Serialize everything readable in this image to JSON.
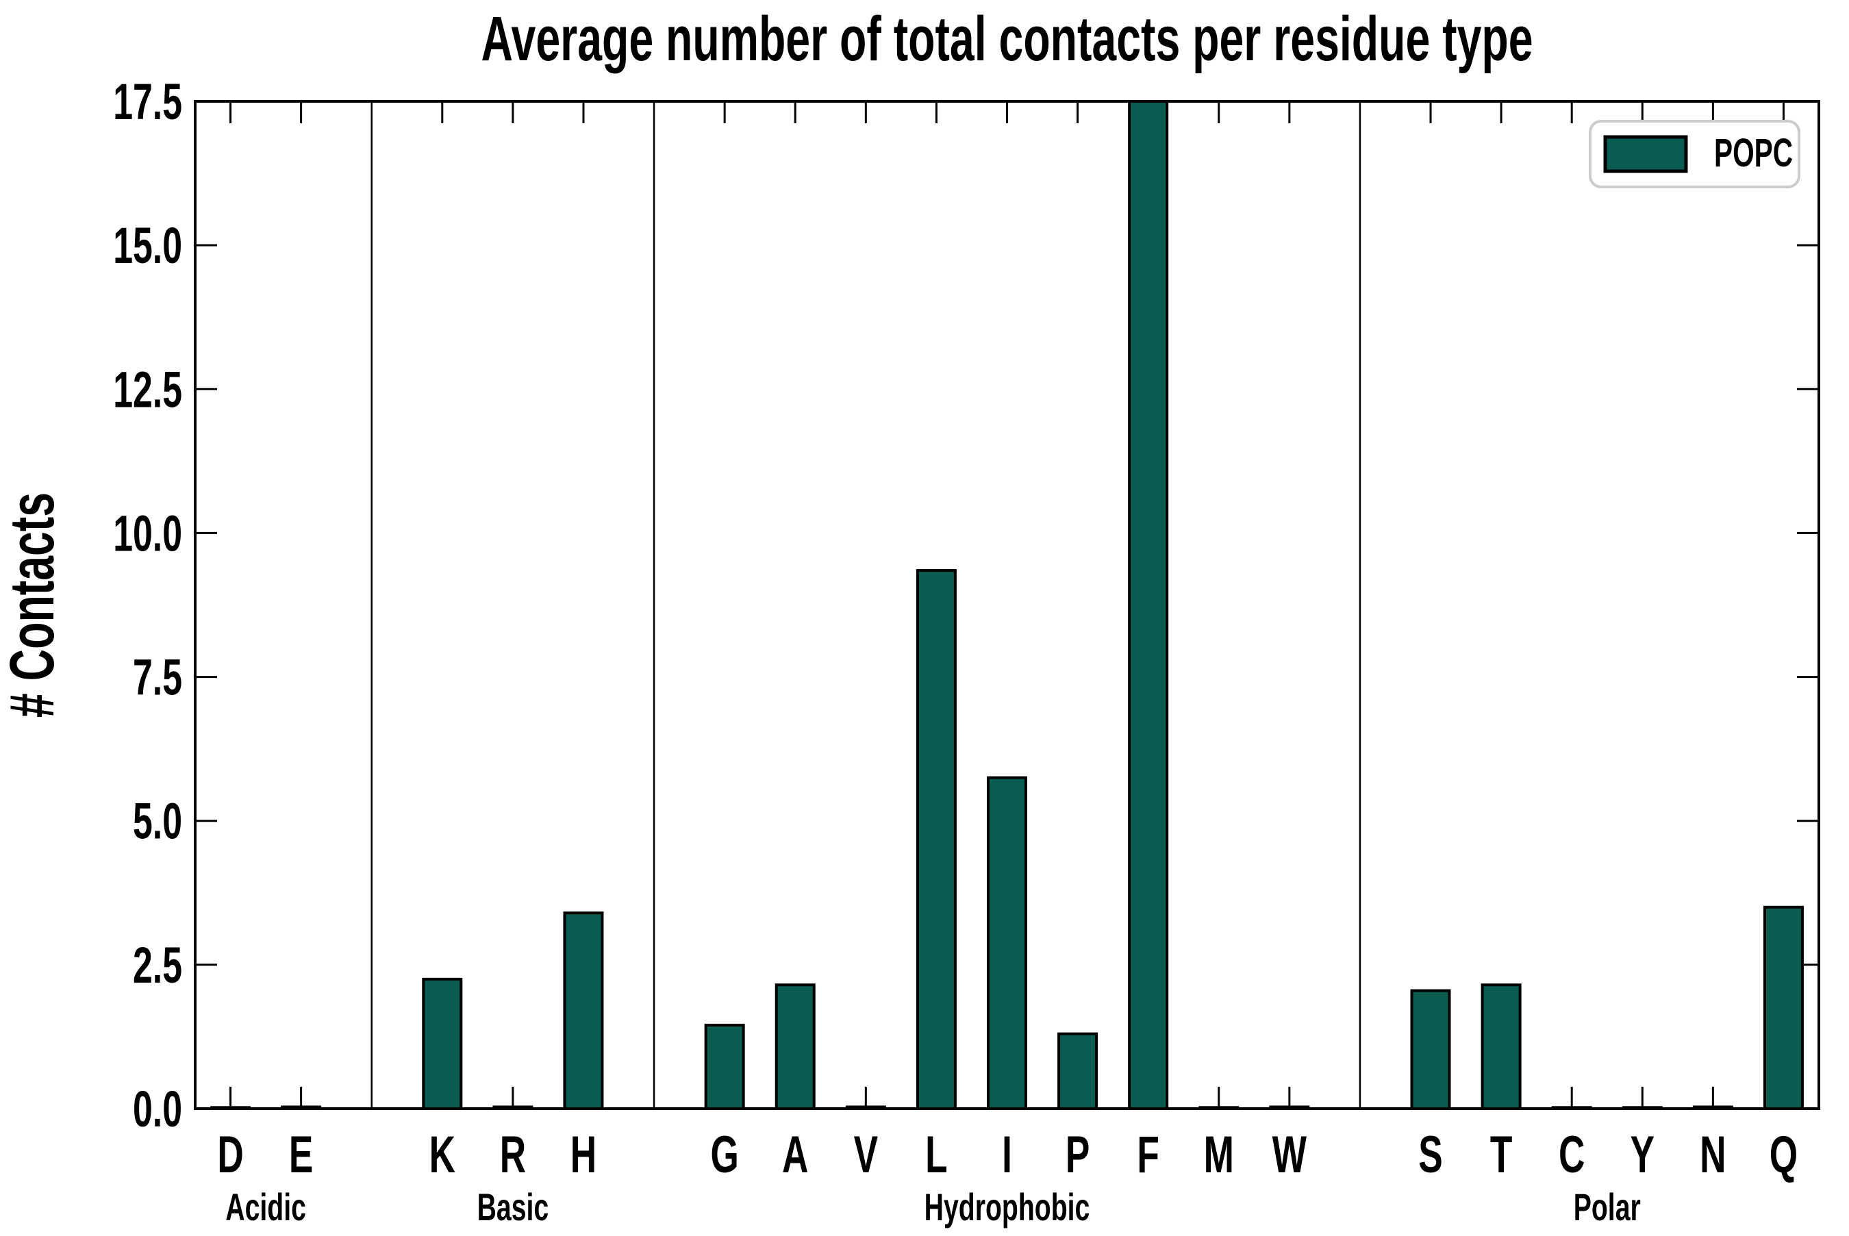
{
  "chart_data": {
    "type": "bar",
    "title": "Average number of total contacts per residue type",
    "xlabel": "",
    "ylabel": "# Contacts",
    "ylim": [
      0,
      17.5
    ],
    "yticks": [
      0.0,
      2.5,
      5.0,
      7.5,
      10.0,
      12.5,
      15.0,
      17.5
    ],
    "grid": false,
    "tick_style": "inward, mirrored on all four spines",
    "legend": {
      "entries": [
        "POPC"
      ],
      "position": "upper right"
    },
    "series_name": "POPC",
    "groups": [
      {
        "label": "Acidic",
        "categories": [
          "D",
          "E"
        ],
        "values": [
          0.02,
          0.03
        ]
      },
      {
        "label": "Basic",
        "categories": [
          "K",
          "R",
          "H"
        ],
        "values": [
          2.25,
          0.03,
          3.4
        ]
      },
      {
        "label": "Hydrophobic",
        "categories": [
          "G",
          "A",
          "V",
          "L",
          "I",
          "P",
          "F",
          "M",
          "W"
        ],
        "values": [
          1.45,
          2.15,
          0.03,
          9.35,
          5.75,
          1.3,
          17.5,
          0.02,
          0.03
        ]
      },
      {
        "label": "Polar",
        "categories": [
          "S",
          "T",
          "C",
          "Y",
          "N",
          "Q"
        ],
        "values": [
          2.05,
          2.15,
          0.02,
          0.02,
          0.03,
          3.5
        ]
      }
    ],
    "clipped_bars": [
      "F"
    ],
    "clipped_note": "F bar exceeds y-axis maximum and is clipped at 17.5",
    "colors": {
      "bar_fill": "#0a5c50",
      "bar_edge": "#000000",
      "axis": "#000000",
      "group_divider": "#000000",
      "legend_border": "#cccccc",
      "background": "#ffffff"
    }
  }
}
